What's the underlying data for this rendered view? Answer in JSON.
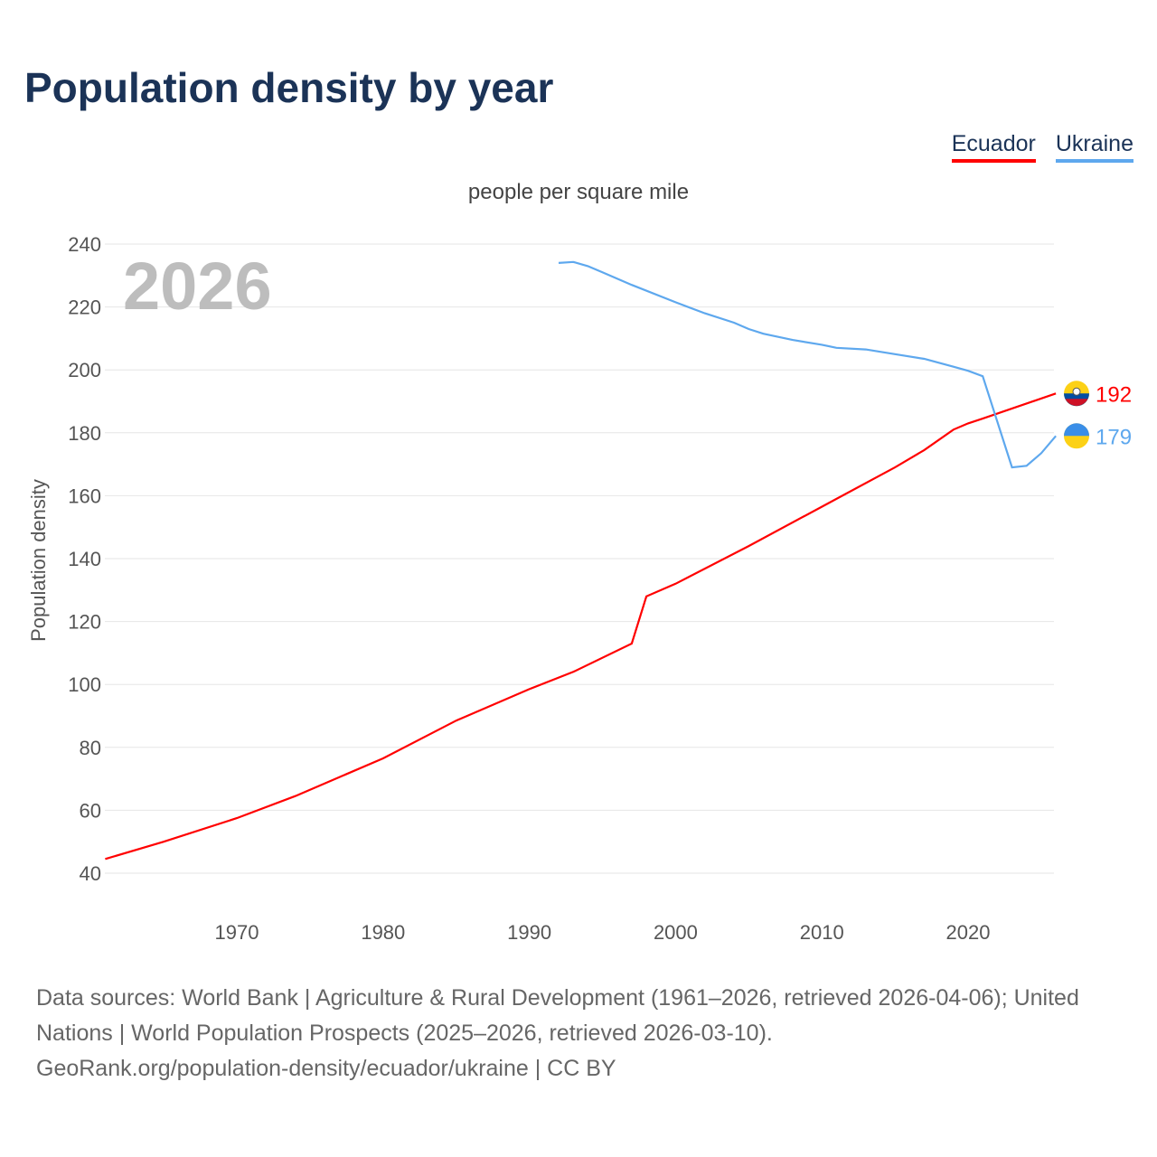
{
  "title": "Population density by year",
  "legend": [
    {
      "name": "Ecuador",
      "color": "#ff0000"
    },
    {
      "name": "Ukraine",
      "color": "#5ea8ee"
    }
  ],
  "source_lines": [
    "Data sources: World Bank | Agriculture & Rural Development (1961–2026, retrieved 2026-04-06); United Nations | World Population Prospects (2025–2026, retrieved 2026-03-10).",
    "GeoRank.org/population-density/ecuador/ukraine | CC BY"
  ],
  "chart_data": {
    "type": "line",
    "title": "Population density by year",
    "subtitle": "people per square mile",
    "ylabel": "Population density",
    "xlabel": "",
    "year_label": "2026",
    "ylim": [
      40,
      240
    ],
    "xlim": [
      1961,
      2026
    ],
    "yticks": [
      40,
      60,
      80,
      100,
      120,
      140,
      160,
      180,
      200,
      220,
      240
    ],
    "xticks": [
      1970,
      1980,
      1990,
      2000,
      2010,
      2020
    ],
    "grid": true,
    "series": [
      {
        "name": "Ecuador",
        "color": "#ff0000",
        "end_label": "192",
        "points": [
          [
            1961,
            44.5
          ],
          [
            1965,
            50
          ],
          [
            1970,
            57.5
          ],
          [
            1974,
            64.5
          ],
          [
            1980,
            76.5
          ],
          [
            1985,
            88.5
          ],
          [
            1990,
            98.5
          ],
          [
            1993,
            104
          ],
          [
            1997,
            113
          ],
          [
            1998,
            128
          ],
          [
            2000,
            132
          ],
          [
            2005,
            144
          ],
          [
            2010,
            156.5
          ],
          [
            2011,
            159
          ],
          [
            2015,
            169
          ],
          [
            2017,
            174.5
          ],
          [
            2019,
            181
          ],
          [
            2020,
            183
          ],
          [
            2021,
            184.5
          ],
          [
            2026,
            192.5
          ]
        ]
      },
      {
        "name": "Ukraine",
        "color": "#5ea8ee",
        "end_label": "179",
        "points": [
          [
            1992,
            234
          ],
          [
            1993,
            234.3
          ],
          [
            1994,
            233
          ],
          [
            1995,
            231
          ],
          [
            1997,
            227
          ],
          [
            2000,
            221.5
          ],
          [
            2002,
            218
          ],
          [
            2004,
            215
          ],
          [
            2005,
            213
          ],
          [
            2006,
            211.5
          ],
          [
            2008,
            209.5
          ],
          [
            2010,
            208
          ],
          [
            2011,
            207
          ],
          [
            2013,
            206.5
          ],
          [
            2015,
            205
          ],
          [
            2017,
            203.5
          ],
          [
            2019,
            201
          ],
          [
            2020,
            199.7
          ],
          [
            2021,
            198
          ],
          [
            2023,
            169
          ],
          [
            2024,
            169.5
          ],
          [
            2025,
            173.5
          ],
          [
            2026,
            179
          ]
        ]
      }
    ]
  }
}
